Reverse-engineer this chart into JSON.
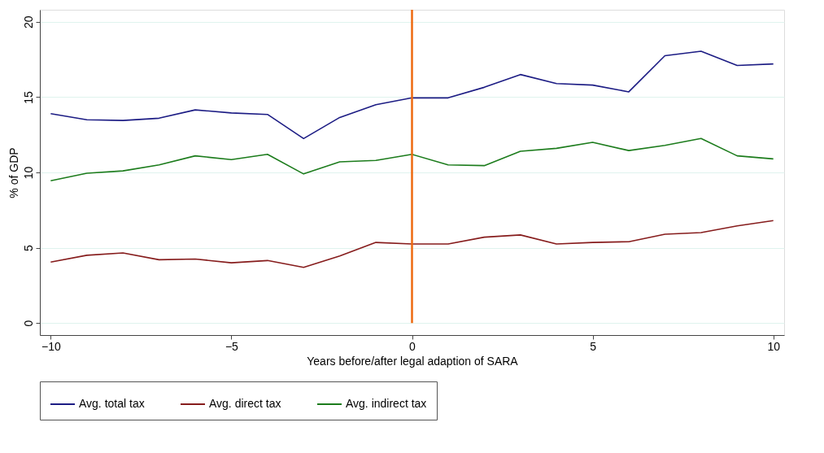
{
  "chart_data": {
    "type": "line",
    "xlabel": "Years before/after legal adaption of SARA",
    "ylabel": "% of GDP",
    "x": [
      -10,
      -9,
      -8,
      -7,
      -6,
      -5,
      -4,
      -3,
      -2,
      -1,
      0,
      1,
      2,
      3,
      4,
      5,
      6,
      7,
      8,
      9,
      10
    ],
    "series": [
      {
        "name": "Avg. total tax",
        "color": "#1c1c84",
        "values": [
          13.9,
          13.5,
          13.45,
          13.6,
          14.15,
          13.95,
          13.85,
          12.25,
          13.65,
          14.5,
          14.95,
          14.95,
          15.65,
          16.5,
          15.9,
          15.8,
          15.35,
          17.75,
          18.05,
          17.1,
          17.2
        ]
      },
      {
        "name": "Avg. direct tax",
        "color": "#861c1c",
        "values": [
          4.05,
          4.5,
          4.65,
          4.2,
          4.25,
          4.0,
          4.15,
          3.7,
          4.45,
          5.35,
          5.25,
          5.25,
          5.7,
          5.85,
          5.25,
          5.35,
          5.4,
          5.9,
          6.0,
          6.45,
          6.8
        ]
      },
      {
        "name": "Avg. indirect tax",
        "color": "#1c7c1c",
        "values": [
          9.45,
          9.95,
          10.1,
          10.5,
          11.1,
          10.85,
          11.2,
          9.9,
          10.7,
          10.8,
          11.2,
          10.5,
          10.45,
          11.4,
          11.6,
          12.0,
          11.45,
          11.8,
          12.25,
          11.1,
          10.9
        ]
      }
    ],
    "ref_lines": [
      {
        "axis": "x",
        "value": 0,
        "color": "#ee6a10"
      }
    ],
    "xlim": [
      -10.3,
      10.3
    ],
    "ylim": [
      -0.8,
      20.8
    ],
    "xticks": [
      -10,
      -5,
      0,
      5,
      10
    ],
    "yticks": [
      0,
      5,
      10,
      15,
      20
    ],
    "grid": "y",
    "legend": "bottom",
    "line_style": "solid",
    "marker": "none"
  }
}
